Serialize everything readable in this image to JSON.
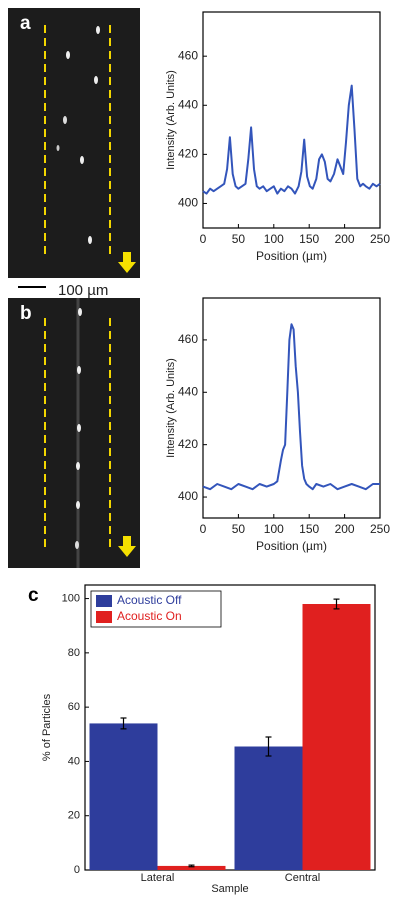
{
  "chart_data": [
    {
      "type": "line",
      "panel_label": "a",
      "image_scale_label": "100 µm",
      "xlabel": "Position (µm)",
      "ylabel": "Intensity (Arb. Units)",
      "x": [
        0,
        5,
        10,
        15,
        20,
        25,
        30,
        34,
        38,
        42,
        46,
        50,
        55,
        60,
        64,
        68,
        72,
        76,
        80,
        85,
        90,
        95,
        100,
        105,
        110,
        115,
        120,
        125,
        130,
        135,
        139,
        143,
        147,
        151,
        155,
        160,
        164,
        168,
        172,
        176,
        180,
        185,
        190,
        194,
        198,
        202,
        206,
        210,
        214,
        218,
        222,
        226,
        230,
        235,
        240,
        245,
        250
      ],
      "series": [
        {
          "color": "#3355bb",
          "values": [
            405,
            404,
            406,
            405,
            406,
            407,
            408,
            414,
            427,
            412,
            407,
            406,
            407,
            408,
            418,
            431,
            414,
            407,
            406,
            407,
            405,
            406,
            407,
            404,
            406,
            405,
            407,
            406,
            404,
            407,
            413,
            426,
            411,
            407,
            406,
            410,
            418,
            420,
            417,
            410,
            409,
            412,
            418,
            415,
            412,
            425,
            440,
            448,
            430,
            410,
            407,
            408,
            407,
            406,
            408,
            407,
            408
          ]
        }
      ],
      "xlim": [
        0,
        250
      ],
      "xticks": [
        0,
        50,
        100,
        150,
        200,
        250
      ],
      "ylim": [
        390,
        478
      ],
      "yticks": [
        400,
        420,
        440,
        460
      ]
    },
    {
      "type": "line",
      "panel_label": "b",
      "xlabel": "Position (µm)",
      "ylabel": "Intensity (Arb. Units)",
      "x": [
        0,
        10,
        20,
        30,
        40,
        50,
        60,
        70,
        80,
        90,
        100,
        105,
        110,
        113,
        116,
        119,
        122,
        125,
        128,
        131,
        134,
        137,
        140,
        143,
        146,
        150,
        155,
        160,
        170,
        180,
        190,
        200,
        210,
        220,
        230,
        240,
        250
      ],
      "series": [
        {
          "color": "#3355bb",
          "values": [
            404,
            403,
            405,
            404,
            403,
            405,
            404,
            403,
            405,
            404,
            405,
            406,
            414,
            418,
            420,
            440,
            460,
            466,
            464,
            450,
            440,
            425,
            412,
            407,
            405,
            404,
            403,
            405,
            404,
            405,
            403,
            404,
            405,
            404,
            403,
            405,
            405
          ]
        }
      ],
      "xlim": [
        0,
        250
      ],
      "xticks": [
        0,
        50,
        100,
        150,
        200,
        250
      ],
      "ylim": [
        392,
        476
      ],
      "yticks": [
        400,
        420,
        440,
        460
      ]
    },
    {
      "type": "bar",
      "panel_label": "c",
      "xlabel": "Sample",
      "ylabel": "% of Particles",
      "categories": [
        "Lateral",
        "Central"
      ],
      "series": [
        {
          "name": "Acoustic Off",
          "color": "#2e3d9c",
          "values": [
            54,
            45.5
          ],
          "errors": [
            2,
            3.5
          ]
        },
        {
          "name": "Acoustic On",
          "color": "#e0201f",
          "values": [
            1.5,
            98
          ],
          "errors": [
            0.3,
            1.8
          ]
        }
      ],
      "ylim": [
        0,
        105
      ],
      "yticks": [
        0,
        20,
        40,
        60,
        80,
        100
      ],
      "legend": "upper-left"
    }
  ]
}
